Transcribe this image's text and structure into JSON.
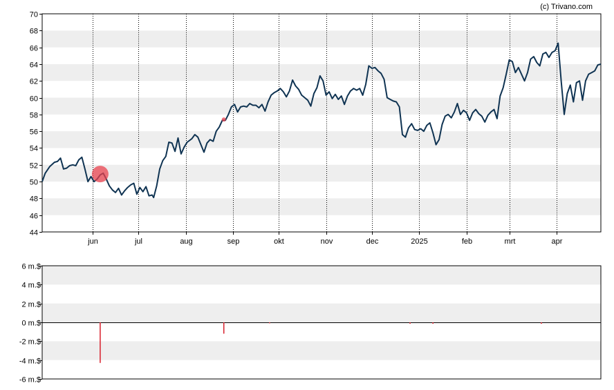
{
  "credit": "(c) Trivano.com",
  "colors": {
    "band": "#eeeeee",
    "price_line": "#0f3352",
    "marker": "#e8434f",
    "insider_bar": "#d81e2a",
    "axis": "#000000"
  },
  "chart_data": [
    {
      "type": "line",
      "ylim": [
        44,
        70
      ],
      "yticks": [
        "44",
        "46",
        "48",
        "50",
        "52",
        "54",
        "56",
        "58",
        "60",
        "62",
        "64",
        "66",
        "68",
        "70"
      ],
      "xticks": [
        {
          "label": "jun",
          "date": "2024-06-01"
        },
        {
          "label": "jul",
          "date": "2024-07-01"
        },
        {
          "label": "aug",
          "date": "2024-08-01"
        },
        {
          "label": "sep",
          "date": "2024-09-01"
        },
        {
          "label": "okt",
          "date": "2024-10-01"
        },
        {
          "label": "nov",
          "date": "2024-11-01"
        },
        {
          "label": "dec",
          "date": "2024-12-01"
        },
        {
          "label": "2025",
          "date": "2025-01-01"
        },
        {
          "label": "feb",
          "date": "2025-02-01"
        },
        {
          "label": "mrt",
          "date": "2025-03-01"
        },
        {
          "label": "apr",
          "date": "2025-04-01"
        }
      ],
      "xlim": [
        "2024-04-29",
        "2025-04-30"
      ],
      "series": [
        {
          "points": [
            [
              "2024-04-29",
              50.0
            ],
            [
              "2024-05-01",
              51.0
            ],
            [
              "2024-05-04",
              51.8
            ],
            [
              "2024-05-07",
              52.3
            ],
            [
              "2024-05-09",
              52.4
            ],
            [
              "2024-05-11",
              52.8
            ],
            [
              "2024-05-13",
              51.5
            ],
            [
              "2024-05-15",
              51.6
            ],
            [
              "2024-05-17",
              51.9
            ],
            [
              "2024-05-19",
              52.0
            ],
            [
              "2024-05-21",
              51.9
            ],
            [
              "2024-05-23",
              52.6
            ],
            [
              "2024-05-25",
              52.9
            ],
            [
              "2024-05-27",
              51.5
            ],
            [
              "2024-05-29",
              50.0
            ],
            [
              "2024-05-31",
              50.6
            ],
            [
              "2024-06-02",
              50.0
            ],
            [
              "2024-06-04",
              50.3
            ],
            [
              "2024-06-06",
              50.8
            ],
            [
              "2024-06-08",
              51.0
            ],
            [
              "2024-06-10",
              50.3
            ],
            [
              "2024-06-12",
              49.5
            ],
            [
              "2024-06-14",
              49.0
            ],
            [
              "2024-06-16",
              48.7
            ],
            [
              "2024-06-18",
              49.2
            ],
            [
              "2024-06-20",
              48.4
            ],
            [
              "2024-06-22",
              48.9
            ],
            [
              "2024-06-24",
              49.3
            ],
            [
              "2024-06-26",
              49.6
            ],
            [
              "2024-06-28",
              49.8
            ],
            [
              "2024-06-30",
              48.5
            ],
            [
              "2024-07-02",
              49.3
            ],
            [
              "2024-07-04",
              48.8
            ],
            [
              "2024-07-06",
              49.4
            ],
            [
              "2024-07-08",
              48.3
            ],
            [
              "2024-07-10",
              48.4
            ],
            [
              "2024-07-11",
              48.1
            ],
            [
              "2024-07-13",
              49.5
            ],
            [
              "2024-07-15",
              51.5
            ],
            [
              "2024-07-17",
              52.5
            ],
            [
              "2024-07-19",
              53.0
            ],
            [
              "2024-07-21",
              54.7
            ],
            [
              "2024-07-23",
              54.6
            ],
            [
              "2024-07-25",
              53.6
            ],
            [
              "2024-07-27",
              55.2
            ],
            [
              "2024-07-29",
              53.3
            ],
            [
              "2024-07-31",
              54.1
            ],
            [
              "2024-08-02",
              54.7
            ],
            [
              "2024-08-05",
              55.1
            ],
            [
              "2024-08-07",
              55.6
            ],
            [
              "2024-08-09",
              55.3
            ],
            [
              "2024-08-11",
              54.4
            ],
            [
              "2024-08-13",
              53.5
            ],
            [
              "2024-08-15",
              54.6
            ],
            [
              "2024-08-17",
              55.0
            ],
            [
              "2024-08-19",
              54.8
            ],
            [
              "2024-08-21",
              56.0
            ],
            [
              "2024-08-23",
              56.5
            ],
            [
              "2024-08-25",
              57.3
            ],
            [
              "2024-08-27",
              57.3
            ],
            [
              "2024-08-29",
              58.0
            ],
            [
              "2024-08-31",
              58.9
            ],
            [
              "2024-09-02",
              59.2
            ],
            [
              "2024-09-04",
              58.3
            ],
            [
              "2024-09-06",
              58.9
            ],
            [
              "2024-09-08",
              59.0
            ],
            [
              "2024-09-10",
              58.9
            ],
            [
              "2024-09-12",
              59.3
            ],
            [
              "2024-09-14",
              59.1
            ],
            [
              "2024-09-16",
              59.1
            ],
            [
              "2024-09-18",
              58.8
            ],
            [
              "2024-09-20",
              59.2
            ],
            [
              "2024-09-22",
              58.4
            ],
            [
              "2024-09-24",
              59.5
            ],
            [
              "2024-09-26",
              60.3
            ],
            [
              "2024-09-28",
              60.6
            ],
            [
              "2024-09-30",
              60.8
            ],
            [
              "2024-10-02",
              61.1
            ],
            [
              "2024-10-04",
              60.7
            ],
            [
              "2024-10-06",
              60.1
            ],
            [
              "2024-10-08",
              60.8
            ],
            [
              "2024-10-10",
              62.1
            ],
            [
              "2024-10-12",
              61.4
            ],
            [
              "2024-10-14",
              61.0
            ],
            [
              "2024-10-16",
              60.3
            ],
            [
              "2024-10-18",
              60.0
            ],
            [
              "2024-10-20",
              59.7
            ],
            [
              "2024-10-22",
              59.0
            ],
            [
              "2024-10-24",
              60.5
            ],
            [
              "2024-10-26",
              61.2
            ],
            [
              "2024-10-28",
              62.6
            ],
            [
              "2024-10-30",
              62.0
            ],
            [
              "2024-11-01",
              60.3
            ],
            [
              "2024-11-03",
              60.7
            ],
            [
              "2024-11-05",
              59.9
            ],
            [
              "2024-11-07",
              60.4
            ],
            [
              "2024-11-09",
              59.8
            ],
            [
              "2024-11-11",
              60.2
            ],
            [
              "2024-11-13",
              59.2
            ],
            [
              "2024-11-15",
              60.2
            ],
            [
              "2024-11-17",
              60.8
            ],
            [
              "2024-11-19",
              61.1
            ],
            [
              "2024-11-21",
              60.9
            ],
            [
              "2024-11-23",
              61.1
            ],
            [
              "2024-11-25",
              60.3
            ],
            [
              "2024-11-27",
              61.6
            ],
            [
              "2024-11-29",
              63.8
            ],
            [
              "2024-12-01",
              63.5
            ],
            [
              "2024-12-03",
              63.6
            ],
            [
              "2024-12-05",
              63.2
            ],
            [
              "2024-12-07",
              62.9
            ],
            [
              "2024-12-09",
              62.2
            ],
            [
              "2024-12-11",
              60.0
            ],
            [
              "2024-12-13",
              59.8
            ],
            [
              "2024-12-15",
              59.6
            ],
            [
              "2024-12-17",
              59.5
            ],
            [
              "2024-12-19",
              58.9
            ],
            [
              "2024-12-21",
              55.6
            ],
            [
              "2024-12-23",
              55.3
            ],
            [
              "2024-12-25",
              56.4
            ],
            [
              "2024-12-27",
              56.9
            ],
            [
              "2024-12-29",
              56.2
            ],
            [
              "2024-12-31",
              56.1
            ],
            [
              "2025-01-02",
              56.3
            ],
            [
              "2025-01-04",
              56.0
            ],
            [
              "2025-01-06",
              56.7
            ],
            [
              "2025-01-08",
              57.0
            ],
            [
              "2025-01-10",
              55.8
            ],
            [
              "2025-01-12",
              54.4
            ],
            [
              "2025-01-14",
              55.0
            ],
            [
              "2025-01-16",
              56.8
            ],
            [
              "2025-01-18",
              57.8
            ],
            [
              "2025-01-20",
              58.0
            ],
            [
              "2025-01-22",
              57.6
            ],
            [
              "2025-01-24",
              58.3
            ],
            [
              "2025-01-26",
              59.3
            ],
            [
              "2025-01-28",
              58.0
            ],
            [
              "2025-01-30",
              58.5
            ],
            [
              "2025-02-01",
              58.2
            ],
            [
              "2025-02-03",
              57.3
            ],
            [
              "2025-02-05",
              58.2
            ],
            [
              "2025-02-07",
              58.6
            ],
            [
              "2025-02-09",
              58.1
            ],
            [
              "2025-02-11",
              57.8
            ],
            [
              "2025-02-13",
              57.1
            ],
            [
              "2025-02-15",
              57.9
            ],
            [
              "2025-02-17",
              58.3
            ],
            [
              "2025-02-19",
              58.6
            ],
            [
              "2025-02-21",
              57.5
            ],
            [
              "2025-02-23",
              60.2
            ],
            [
              "2025-02-25",
              61.2
            ],
            [
              "2025-02-27",
              62.8
            ],
            [
              "2025-03-01",
              64.5
            ],
            [
              "2025-03-03",
              64.3
            ],
            [
              "2025-03-05",
              63.0
            ],
            [
              "2025-03-07",
              63.6
            ],
            [
              "2025-03-09",
              62.8
            ],
            [
              "2025-03-11",
              62.0
            ],
            [
              "2025-03-13",
              63.0
            ],
            [
              "2025-03-15",
              64.6
            ],
            [
              "2025-03-17",
              64.9
            ],
            [
              "2025-03-19",
              64.2
            ],
            [
              "2025-03-21",
              63.8
            ],
            [
              "2025-03-23",
              65.2
            ],
            [
              "2025-03-25",
              65.4
            ],
            [
              "2025-03-27",
              64.8
            ],
            [
              "2025-03-29",
              65.4
            ],
            [
              "2025-03-31",
              65.6
            ],
            [
              "2025-04-02",
              66.5
            ],
            [
              "2025-04-04",
              62.0
            ],
            [
              "2025-04-06",
              58.0
            ],
            [
              "2025-04-08",
              60.5
            ],
            [
              "2025-04-10",
              61.5
            ],
            [
              "2025-04-12",
              59.5
            ],
            [
              "2025-04-14",
              61.8
            ],
            [
              "2025-04-16",
              62.0
            ],
            [
              "2025-04-18",
              59.7
            ],
            [
              "2025-04-20",
              62.0
            ],
            [
              "2025-04-22",
              62.8
            ],
            [
              "2025-04-24",
              63.0
            ],
            [
              "2025-04-26",
              63.2
            ],
            [
              "2025-04-28",
              63.9
            ],
            [
              "2025-04-30",
              64.0
            ]
          ]
        }
      ],
      "markers": [
        {
          "date": "2024-06-06",
          "value": 50.9,
          "size": "large"
        },
        {
          "date": "2024-08-26",
          "value": 57.4,
          "size": "small"
        }
      ]
    },
    {
      "type": "bar",
      "ylim": [
        -6,
        6
      ],
      "yticks": [
        "-6 m.$",
        "-4 m.$",
        "-2 m.$",
        "0 m.$",
        "2 m.$",
        "4 m.$",
        "6 m.$"
      ],
      "xlim": [
        "2024-04-29",
        "2025-04-30"
      ],
      "bars": [
        {
          "date": "2024-06-06",
          "value": -4.3
        },
        {
          "date": "2024-08-26",
          "value": -1.2
        },
        {
          "date": "2024-09-25",
          "value": -0.1
        },
        {
          "date": "2024-12-26",
          "value": -0.15
        },
        {
          "date": "2025-01-10",
          "value": -0.15
        },
        {
          "date": "2025-03-22",
          "value": -0.15
        }
      ]
    }
  ]
}
